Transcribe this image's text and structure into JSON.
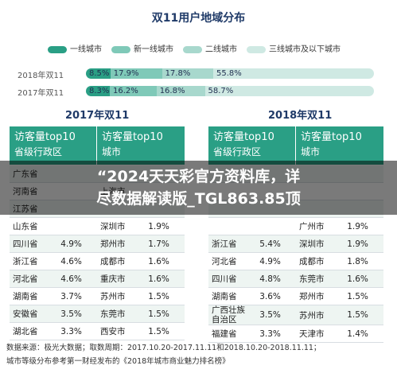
{
  "title": "双11用户地域分布",
  "legend": [
    {
      "label": "一线城市",
      "color": "#2a9f85"
    },
    {
      "label": "新一线城市",
      "color": "#7fc9b8"
    },
    {
      "label": "二线城市",
      "color": "#a8d8cd"
    },
    {
      "label": "三线城市及以下城市",
      "color": "#cfe9e3"
    }
  ],
  "chart_data": {
    "type": "bar",
    "stacked": true,
    "orientation": "horizontal",
    "categories": [
      "2018年双11",
      "2017年双11"
    ],
    "series": [
      {
        "name": "一线城市",
        "values": [
          8.5,
          8.3
        ],
        "labels": [
          "8.5%",
          "8.3%"
        ]
      },
      {
        "name": "新一线城市",
        "values": [
          17.9,
          16.2
        ],
        "labels": [
          "17.9%",
          "16.2%"
        ]
      },
      {
        "name": "二线城市",
        "values": [
          17.8,
          16.8
        ],
        "labels": [
          "17.8%",
          "16.8%"
        ]
      },
      {
        "name": "三线城市及以下城市",
        "values": [
          55.8,
          58.7
        ],
        "labels": [
          "55.8%",
          "58.7%"
        ]
      }
    ]
  },
  "year_titles": [
    "2017年双11",
    "2018年双11"
  ],
  "headers": {
    "province": {
      "line1": "访客量top10",
      "line2": "省级行政区"
    },
    "city": {
      "line1": "访客量top10",
      "line2": "城市"
    }
  },
  "tables": {
    "y2017": {
      "provinces": [
        {
          "name": "广东省",
          "pct": ""
        },
        {
          "name": "河南省",
          "pct": ""
        },
        {
          "name": "江苏省",
          "pct": ""
        },
        {
          "name": "山东省",
          "pct": ""
        },
        {
          "name": "四川省",
          "pct": "4.9%"
        },
        {
          "name": "浙江省",
          "pct": "4.6%"
        },
        {
          "name": "河北省",
          "pct": "4.6%"
        },
        {
          "name": "湖南省",
          "pct": "3.7%"
        },
        {
          "name": "安徽省",
          "pct": "3.5%"
        },
        {
          "name": "湖北省",
          "pct": "3.3%"
        }
      ],
      "cities": [
        {
          "name": "",
          "pct": ""
        },
        {
          "name": "上海市",
          "pct": ""
        },
        {
          "name": "",
          "pct": ""
        },
        {
          "name": "深圳市",
          "pct": "1.9%"
        },
        {
          "name": "郑州市",
          "pct": "1.7%"
        },
        {
          "name": "成都市",
          "pct": "1.6%"
        },
        {
          "name": "重庆市",
          "pct": "1.6%"
        },
        {
          "name": "苏州市",
          "pct": "1.5%"
        },
        {
          "name": "东莞市",
          "pct": "1.5%"
        },
        {
          "name": "西安市",
          "pct": "1.5%"
        }
      ]
    },
    "y2018": {
      "provinces": [
        {
          "name": "",
          "pct": ""
        },
        {
          "name": "",
          "pct": ""
        },
        {
          "name": "",
          "pct": ""
        },
        {
          "name": "",
          "pct": ""
        },
        {
          "name": "浙江省",
          "pct": "5.4%"
        },
        {
          "name": "河北省",
          "pct": "4.9%"
        },
        {
          "name": "四川省",
          "pct": "4.8%"
        },
        {
          "name": "湖南省",
          "pct": "3.6%"
        },
        {
          "name": "广西壮族自治区",
          "pct": "3.5%"
        },
        {
          "name": "福建省",
          "pct": "3.3%"
        }
      ],
      "cities": [
        {
          "name": "",
          "pct": ""
        },
        {
          "name": "",
          "pct": ""
        },
        {
          "name": "",
          "pct": ""
        },
        {
          "name": "广州市",
          "pct": "1.9%"
        },
        {
          "name": "深圳市",
          "pct": "1.9%"
        },
        {
          "name": "成都市",
          "pct": "1.8%"
        },
        {
          "name": "东莞市",
          "pct": "1.6%"
        },
        {
          "name": "郑州市",
          "pct": "1.5%"
        },
        {
          "name": "苏州市",
          "pct": "1.5%"
        },
        {
          "name": "天津市",
          "pct": "1.4%"
        }
      ]
    }
  },
  "banner": {
    "line1": "“2024天天彩官方资料库，详",
    "line2": "尽数据解读版_TGL863.85顶"
  },
  "footnote": {
    "line1": "数据来源：极光大数据；取数周期：2017.10.20-2017.11.11和2018.10.20-2018.11.11；",
    "line2": "城市等级分布参考第一财经发布的《2018年城市商业魅力排名榜》"
  }
}
